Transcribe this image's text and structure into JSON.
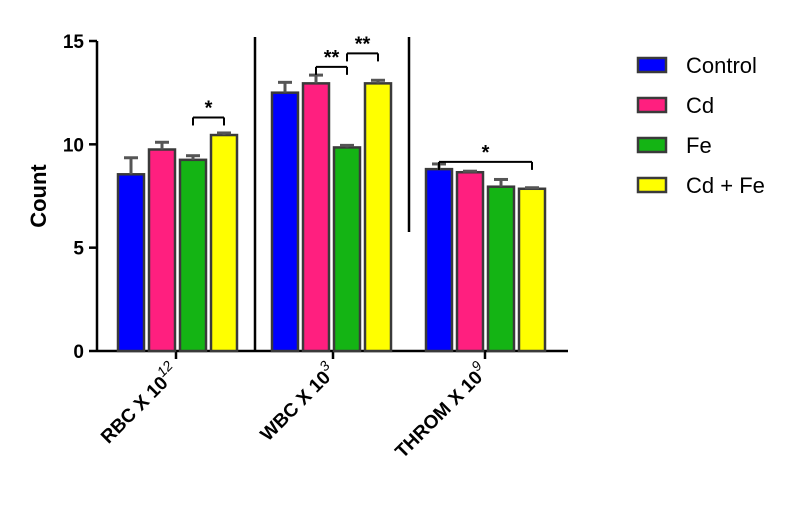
{
  "chart_data": {
    "type": "bar",
    "title": "",
    "xlabel": "",
    "ylabel": "Count",
    "ylim": [
      0,
      15
    ],
    "yticks": [
      0,
      5,
      10,
      15
    ],
    "categories": [
      {
        "base": "RBC X 10",
        "exp": "12"
      },
      {
        "base": "WBC X 10",
        "exp": "3"
      },
      {
        "base": "THROM X 10",
        "exp": "9"
      }
    ],
    "series": [
      {
        "name": "Control",
        "color": "#0000FF",
        "values": [
          8.55,
          12.5,
          8.8
        ],
        "errors": [
          0.8,
          0.5,
          0.25
        ]
      },
      {
        "name": "Cd",
        "color": "#FF1F7F",
        "values": [
          9.75,
          12.95,
          8.65
        ],
        "errors": [
          0.35,
          0.4,
          0.05
        ]
      },
      {
        "name": "Fe",
        "color": "#14B414",
        "values": [
          9.25,
          9.85,
          7.95
        ],
        "errors": [
          0.2,
          0.1,
          0.35
        ]
      },
      {
        "name": "Cd + Fe",
        "color": "#FFFF00",
        "values": [
          10.45,
          12.95,
          7.85
        ],
        "errors": [
          0.1,
          0.15,
          0.05
        ]
      }
    ],
    "significance": [
      {
        "group": 0,
        "from": 2,
        "to": 3,
        "y": 11.3,
        "label": "*"
      },
      {
        "group": 1,
        "from": 1,
        "to": 2,
        "y": 13.75,
        "label": "**"
      },
      {
        "group": 1,
        "from": 2,
        "to": 3,
        "y": 14.4,
        "label": "**"
      },
      {
        "group": 2,
        "from": 0,
        "to": 3,
        "y": 9.15,
        "label": "*"
      }
    ],
    "legend_position": "right",
    "grid": false
  }
}
